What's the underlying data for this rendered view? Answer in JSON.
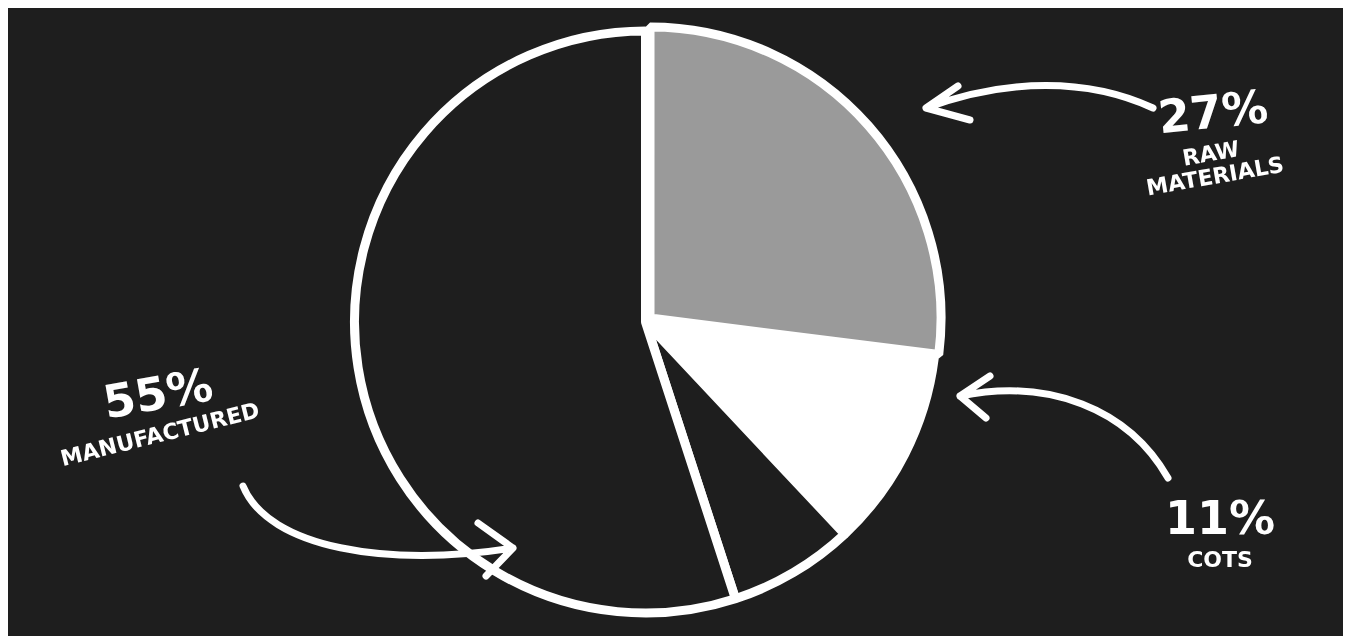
{
  "chart_data": {
    "type": "pie",
    "categories": [
      "RAW MATERIALS",
      "COTS",
      null,
      "MANUFACTURED"
    ],
    "values": [
      27,
      11,
      7,
      55
    ],
    "colors": [
      "#9a9a9a",
      "#ffffff",
      "#1e1e1e",
      "#1e1e1e"
    ],
    "value_labels": [
      "27%",
      "11%",
      null,
      "55%"
    ]
  }
}
